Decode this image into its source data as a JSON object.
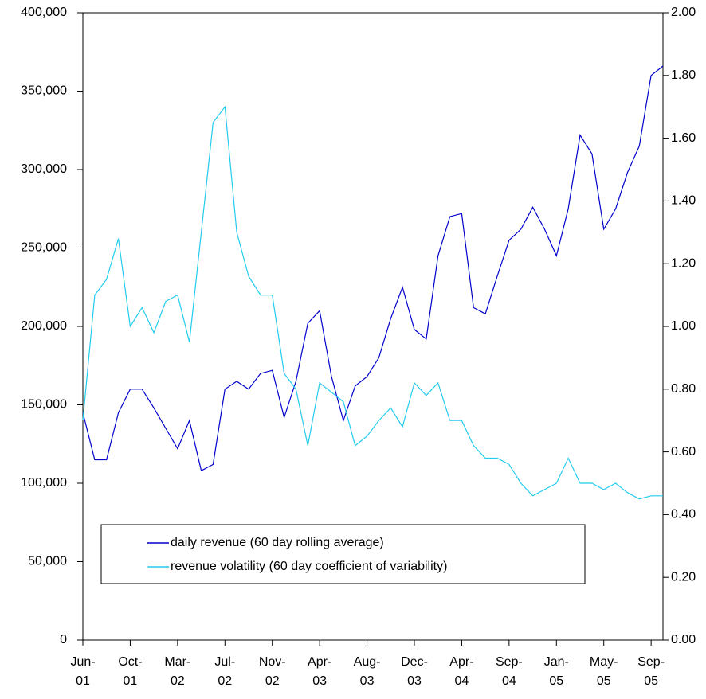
{
  "chart_data": {
    "type": "line",
    "x": [
      0,
      1,
      2,
      3,
      4,
      5,
      6,
      7,
      8,
      9,
      10,
      11,
      12,
      13,
      14,
      15,
      16,
      17,
      18,
      19,
      20,
      21,
      22,
      23,
      24,
      25,
      26,
      27,
      28,
      29,
      30,
      31,
      32,
      33,
      34,
      35,
      36,
      37,
      38,
      39,
      40,
      41,
      42,
      43,
      44,
      45,
      46,
      47,
      48,
      49
    ],
    "xlim": [
      0,
      49
    ],
    "xticks": [
      {
        "value": 0,
        "label": "Jun-01"
      },
      {
        "value": 4,
        "label": "Oct-01"
      },
      {
        "value": 8,
        "label": "Mar-02"
      },
      {
        "value": 12,
        "label": "Jul-02"
      },
      {
        "value": 16,
        "label": "Nov-02"
      },
      {
        "value": 20,
        "label": "Apr-03"
      },
      {
        "value": 24,
        "label": "Aug-03"
      },
      {
        "value": 28,
        "label": "Dec-03"
      },
      {
        "value": 32,
        "label": "Apr-04"
      },
      {
        "value": 36,
        "label": "Sep-04"
      },
      {
        "value": 40,
        "label": "Jan-05"
      },
      {
        "value": 44,
        "label": "May-05"
      },
      {
        "value": 48,
        "label": "Sep-05"
      }
    ],
    "ylim": [
      0,
      400000
    ],
    "yticks": [
      0,
      {
        "value": 50000,
        "label": "50,000"
      },
      {
        "value": 100000,
        "label": "100,000"
      },
      {
        "value": 150000,
        "label": "150,000"
      },
      {
        "value": 200000,
        "label": "200,000"
      },
      {
        "value": 250000,
        "label": "250,000"
      },
      {
        "value": 300000,
        "label": "300,000"
      },
      {
        "value": 350000,
        "label": "350,000"
      },
      {
        "value": 400000,
        "label": "400,000"
      }
    ],
    "y2lim": [
      0,
      2
    ],
    "y2ticks": [
      {
        "value": 0,
        "label": "0.00"
      },
      {
        "value": 0.2,
        "label": "0.20"
      },
      {
        "value": 0.4,
        "label": "0.40"
      },
      {
        "value": 0.6,
        "label": "0.60"
      },
      {
        "value": 0.8,
        "label": "0.80"
      },
      {
        "value": 1.0,
        "label": "1.00"
      },
      {
        "value": 1.2,
        "label": "1.20"
      },
      {
        "value": 1.4,
        "label": "1.40"
      },
      {
        "value": 1.6,
        "label": "1.60"
      },
      {
        "value": 1.8,
        "label": "1.80"
      },
      {
        "value": 2.0,
        "label": "2.00"
      }
    ],
    "grid": false,
    "legend": "bottom-left",
    "series": [
      {
        "name": "daily revenue (60 day rolling average)",
        "color": "#0000cc",
        "values": [
          145000,
          115000,
          115000,
          145000,
          160000,
          160000,
          148000,
          135000,
          122000,
          140000,
          108000,
          112000,
          160000,
          165000,
          160000,
          170000,
          172000,
          142000,
          165000,
          202000,
          210000,
          168000,
          140000,
          162000,
          168000,
          180000,
          205000,
          225000,
          198000,
          192000,
          245000,
          270000,
          272000,
          212000,
          208000,
          232000,
          255000,
          262000,
          276000,
          262000,
          245000,
          275000,
          322000,
          310000,
          262000,
          275000,
          298000,
          315000,
          360000,
          366000
        ]
      },
      {
        "name": "revenue volatility (60 day coefficient of variability)",
        "color": "#22ccee",
        "axis": "y2",
        "values": [
          0.7,
          1.1,
          1.15,
          1.28,
          1.0,
          1.06,
          0.98,
          1.08,
          1.1,
          0.95,
          1.3,
          1.65,
          1.7,
          1.3,
          1.16,
          1.1,
          1.1,
          0.85,
          0.8,
          0.62,
          0.82,
          0.79,
          0.76,
          0.62,
          0.65,
          0.7,
          0.74,
          0.68,
          0.82,
          0.78,
          0.82,
          0.7,
          0.7,
          0.62,
          0.58,
          0.58,
          0.56,
          0.5,
          0.46,
          0.48,
          0.5,
          0.58,
          0.5,
          0.5,
          0.48,
          0.5,
          0.47,
          0.45,
          0.46,
          0.46
        ]
      }
    ]
  }
}
